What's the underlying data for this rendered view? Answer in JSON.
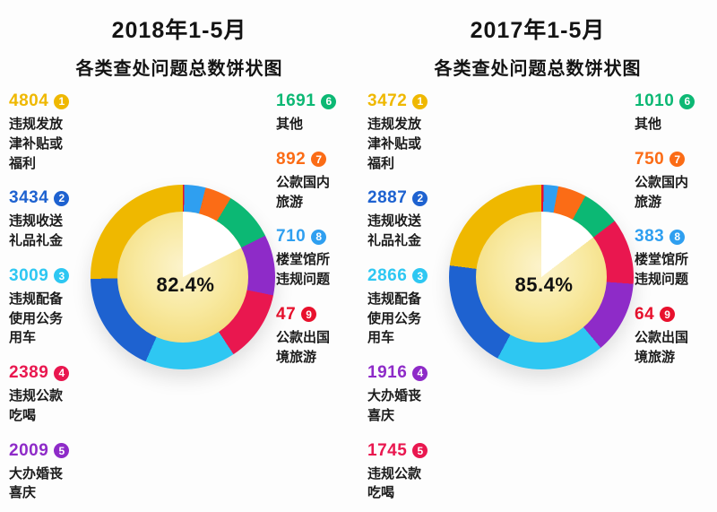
{
  "chart_data": [
    {
      "type": "pie",
      "title": "2018年1-5月各类查处问题总数饼状图",
      "title_line1": "2018年1-5月",
      "title_line2": "各类查处问题总数饼状图",
      "center_label": "82.4%",
      "categories": [
        "违规发放津补贴或福利",
        "违规收送礼品礼金",
        "违规配备使用公务用车",
        "违规公款吃喝",
        "大办婚丧喜庆",
        "其他",
        "公款国内旅游",
        "楼堂馆所违规问题",
        "公款出国境旅游"
      ],
      "values": [
        4804,
        3434,
        3009,
        2389,
        2009,
        1691,
        892,
        710,
        47
      ],
      "colors": [
        "#EFB800",
        "#1E62D0",
        "#2EC7F2",
        "#E9174F",
        "#8E2BC8",
        "#0CB874",
        "#FB6C16",
        "#2F9FF0",
        "#E8112D"
      ],
      "ranks": [
        1,
        2,
        3,
        4,
        5,
        6,
        7,
        8,
        9
      ],
      "legend_split": 5,
      "legend_position": "left-and-right",
      "direction": "counterclockwise",
      "start_angle_deg": 0
    },
    {
      "type": "pie",
      "title": "2017年1-5月各类查处问题总数饼状图",
      "title_line1": "2017年1-5月",
      "title_line2": "各类查处问题总数饼状图",
      "center_label": "85.4%",
      "categories": [
        "违规发放津补贴或福利",
        "违规收送礼品礼金",
        "违规配备使用公务用车",
        "大办婚丧喜庆",
        "违规公款吃喝",
        "其他",
        "公款国内旅游",
        "楼堂馆所违规问题",
        "公款出国境旅游"
      ],
      "values": [
        3472,
        2887,
        2866,
        1916,
        1745,
        1010,
        750,
        383,
        64
      ],
      "colors": [
        "#EFB800",
        "#1E62D0",
        "#2EC7F2",
        "#8E2BC8",
        "#E9174F",
        "#0CB874",
        "#FB6C16",
        "#2F9FF0",
        "#E8112D"
      ],
      "ranks": [
        1,
        2,
        3,
        4,
        5,
        6,
        7,
        8,
        9
      ],
      "legend_split": 5,
      "legend_position": "left-and-right",
      "direction": "counterclockwise",
      "start_angle_deg": 0
    }
  ]
}
